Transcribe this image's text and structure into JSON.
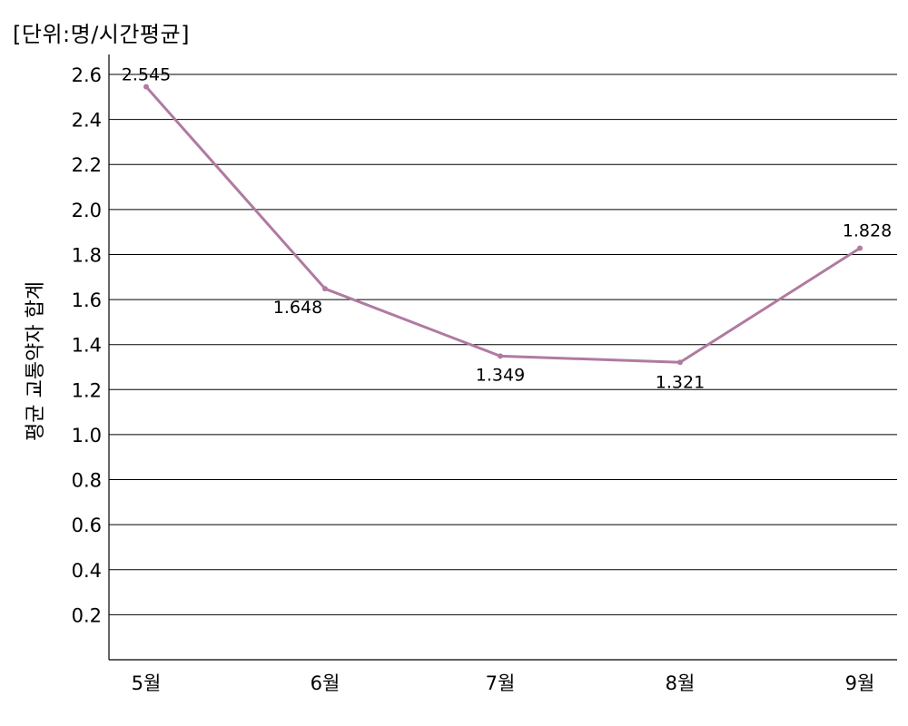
{
  "unit_label": "[단위:명/시간평균]",
  "chart_data": {
    "type": "line",
    "title": "",
    "xlabel": "",
    "ylabel": "평균 교통약자 합계",
    "categories": [
      "5월",
      "6월",
      "7월",
      "8월",
      "9월"
    ],
    "series": [
      {
        "values": [
          2.545,
          1.648,
          1.349,
          1.321,
          1.828
        ]
      }
    ],
    "data_labels": [
      "2.545",
      "1.648",
      "1.349",
      "1.321",
      "1.828"
    ],
    "y_ticks": [
      0.2,
      0.4,
      0.6,
      0.8,
      1.0,
      1.2,
      1.4,
      1.6,
      1.8,
      2.0,
      2.2,
      2.4,
      2.6
    ],
    "y_tick_labels": [
      "0.2",
      "0.4",
      "0.6",
      "0.8",
      "1.0",
      "1.2",
      "1.4",
      "1.6",
      "1.8",
      "2.0",
      "2.2",
      "2.4",
      "2.6"
    ],
    "ylim": [
      0,
      2.6
    ],
    "grid": true,
    "line_color": "#b07aa1"
  }
}
